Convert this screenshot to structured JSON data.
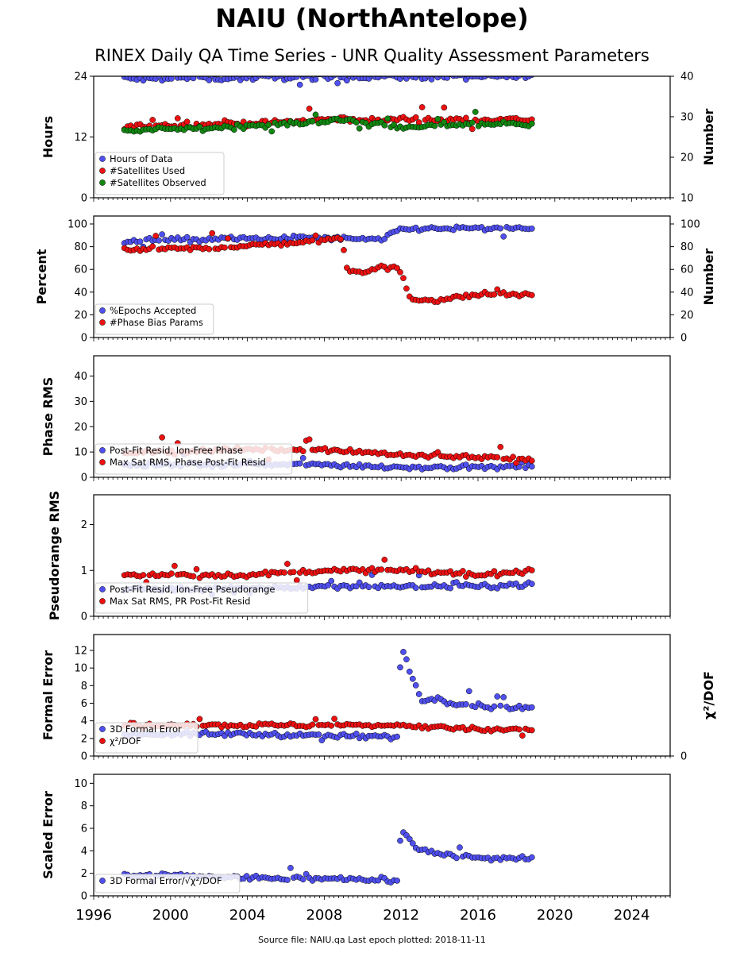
{
  "title": "NAIU (NorthAntelope)",
  "subtitle": "RINEX Daily QA Time Series - UNR Quality Assessment Parameters",
  "footer": "Source file: NAIU.qa Last epoch plotted: 2018-11-11",
  "colors": {
    "blue": "#5050f0",
    "red": "#ee1111",
    "green": "#118811"
  },
  "chart_data": [
    {
      "type": "scatter",
      "xlim": [
        1996,
        2026
      ],
      "xticks": [
        1996,
        2000,
        2004,
        2008,
        2012,
        2016,
        2020,
        2024
      ],
      "ylabel": "Hours",
      "ylim": [
        0,
        24
      ],
      "yticks": [
        0,
        12,
        24
      ],
      "y2label": "Number",
      "y2lim": [
        10,
        40
      ],
      "y2ticks": [
        10,
        20,
        30,
        40
      ],
      "legend": "lower-left",
      "series": [
        {
          "name": "Hours of Data",
          "color": "blue",
          "axis": "left",
          "x": [
            1997.6,
            1998.5,
            1999.5,
            2001,
            2003,
            2005,
            2007,
            2009,
            2011,
            2013,
            2015,
            2017,
            2018.8
          ],
          "y": [
            23.6,
            23.4,
            23.5,
            23.7,
            23.6,
            23.8,
            23.9,
            23.8,
            23.9,
            23.9,
            23.9,
            23.9,
            23.9
          ]
        },
        {
          "name": "#Satellites Used",
          "color": "red",
          "axis": "right",
          "x": [
            1997.6,
            1999,
            2001,
            2003,
            2005,
            2007,
            2009,
            2011,
            2012,
            2014,
            2016,
            2018.8
          ],
          "y": [
            27.5,
            27.8,
            28,
            28.2,
            28.5,
            29,
            29.5,
            29,
            29.5,
            29.3,
            29.3,
            29.3
          ]
        },
        {
          "name": "#Satellites Observed",
          "color": "green",
          "axis": "right",
          "x": [
            1997.6,
            1999,
            2001,
            2003,
            2005,
            2007,
            2009,
            2011,
            2012,
            2014,
            2016,
            2018.8
          ],
          "y": [
            26.5,
            26.8,
            27,
            27.5,
            28,
            28.5,
            29.2,
            28.5,
            27,
            28,
            28.2,
            28.3
          ]
        }
      ]
    },
    {
      "type": "scatter",
      "xlim": [
        1996,
        2026
      ],
      "ylabel": "Percent",
      "ylim": [
        0,
        107
      ],
      "yticks": [
        0,
        20,
        40,
        60,
        80,
        100
      ],
      "y2label": "Number",
      "y2ticks": [
        0,
        20,
        40,
        60,
        80,
        100
      ],
      "legend": "lower-left",
      "series": [
        {
          "name": "%Epochs Accepted",
          "color": "blue",
          "axis": "left",
          "x": [
            1997.6,
            1999,
            2001,
            2003,
            2005,
            2007,
            2009,
            2011,
            2011.9,
            2013,
            2015,
            2017,
            2018.8
          ],
          "y": [
            84,
            86,
            86,
            87,
            87,
            88,
            87,
            86,
            95,
            96,
            96,
            96,
            96
          ]
        },
        {
          "name": "#Phase Bias Params",
          "color": "red",
          "axis": "right",
          "x": [
            1997.6,
            1999,
            2001,
            2003,
            2005,
            2007,
            2008.9,
            2009.2,
            2010,
            2011,
            2011.9,
            2012.5,
            2014,
            2016,
            2018.8
          ],
          "y": [
            76,
            78,
            78,
            80,
            82,
            84,
            88,
            60,
            58,
            62,
            60,
            34,
            33,
            38,
            38
          ]
        }
      ]
    },
    {
      "type": "scatter",
      "xlim": [
        1996,
        2026
      ],
      "ylabel": "Phase RMS",
      "ylim": [
        0,
        48
      ],
      "yticks": [
        0,
        10,
        20,
        30,
        40
      ],
      "legend": "lower-left",
      "series": [
        {
          "name": "Post-Fit Resid, Ion-Free Phase",
          "color": "blue",
          "axis": "left",
          "x": [
            1997.6,
            2000,
            2004,
            2008,
            2011.9,
            2014,
            2018.8
          ],
          "y": [
            5,
            5,
            5,
            5,
            4,
            4,
            4
          ]
        },
        {
          "name": "Max Sat RMS, Phase Post-Fit Resid",
          "color": "red",
          "axis": "left",
          "x": [
            1997.6,
            2000,
            2004,
            2008,
            2011.9,
            2014,
            2016.5,
            2018.8
          ],
          "y": [
            10,
            10,
            11,
            11,
            9,
            8,
            8,
            7
          ]
        }
      ]
    },
    {
      "type": "scatter",
      "xlim": [
        1996,
        2026
      ],
      "ylabel": "Pseudorange RMS",
      "ylim": [
        0,
        2.65
      ],
      "yticks": [
        0,
        1,
        2
      ],
      "legend": "lower-left",
      "series": [
        {
          "name": "Post-Fit Resid, Ion-Free Pseudorange",
          "color": "blue",
          "axis": "left",
          "x": [
            1997.6,
            2000,
            2004,
            2008,
            2012,
            2016,
            2018.8
          ],
          "y": [
            0.6,
            0.6,
            0.6,
            0.65,
            0.65,
            0.65,
            0.7
          ]
        },
        {
          "name": "Max Sat RMS, PR Post-Fit Resid",
          "color": "red",
          "axis": "left",
          "x": [
            1997.6,
            2000,
            2004,
            2008,
            2012,
            2016,
            2018.8
          ],
          "y": [
            0.9,
            0.9,
            0.9,
            1.0,
            1.0,
            0.9,
            1.0
          ]
        }
      ]
    },
    {
      "type": "scatter",
      "xlim": [
        1996,
        2026
      ],
      "ylabel": "Formal Error",
      "ylim": [
        0,
        13.8
      ],
      "yticks": [
        0,
        2,
        4,
        6,
        8,
        10,
        12
      ],
      "y2label": "χ²/DOF",
      "y2ticks": [
        0
      ],
      "legend": "lower-left",
      "series": [
        {
          "name": "3D Formal Error",
          "color": "blue",
          "axis": "left",
          "x": [
            1997.6,
            2000,
            2004,
            2008,
            2011.8,
            2012,
            2013,
            2015,
            2017,
            2018.8
          ],
          "y": [
            2.5,
            2.5,
            2.5,
            2.3,
            2.2,
            12.5,
            6.5,
            6,
            5.5,
            5.5
          ]
        },
        {
          "name": "χ²/DOF",
          "color": "red",
          "axis": "right",
          "x": [
            1997.6,
            2000,
            2004,
            2008,
            2012,
            2016,
            2018.8
          ],
          "y": [
            3.5,
            3.5,
            3.5,
            3.5,
            3.5,
            3,
            3
          ]
        }
      ]
    },
    {
      "type": "scatter",
      "xlim": [
        1996,
        2026
      ],
      "ylabel": "Scaled Error",
      "ylim": [
        0,
        10.8
      ],
      "yticks": [
        0,
        2,
        4,
        6,
        8,
        10
      ],
      "legend": "lower-left",
      "series": [
        {
          "name": "3D Formal Error/√χ²/DOF",
          "color": "blue",
          "axis": "left",
          "x": [
            1997.6,
            2000,
            2004,
            2008,
            2011.8,
            2012,
            2013,
            2015,
            2017,
            2018.8
          ],
          "y": [
            1.8,
            1.8,
            1.6,
            1.5,
            1.4,
            6,
            4,
            3.5,
            3.3,
            3.3
          ]
        }
      ]
    }
  ]
}
